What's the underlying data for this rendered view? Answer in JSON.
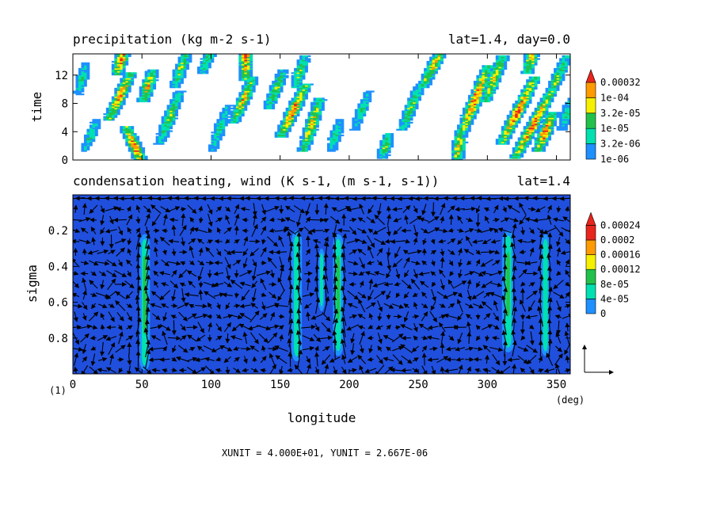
{
  "colors": {
    "background": "#ffffff",
    "axis": "#000000",
    "precip_levels": [
      "#ffffff",
      "#1e90ff",
      "#00e0b0",
      "#22c24a",
      "#f5f000",
      "#ff9a00",
      "#e8261c"
    ],
    "heating_levels": [
      "#1f4fdc",
      "#1e90ff",
      "#00e0b0",
      "#22c24a",
      "#f5f000",
      "#ff9a00",
      "#e8261c"
    ],
    "arrow": "#000000"
  },
  "chart_data": [
    {
      "type": "heatmap",
      "title": "precipitation (kg m-2 s-1)",
      "subtitle": "lat=1.4, day=0.0",
      "xlabel": "",
      "ylabel": "time",
      "xlim": [
        0,
        360
      ],
      "ylim": [
        0,
        15
      ],
      "y_ticks": [
        "0",
        "4",
        "8",
        "12"
      ],
      "legend": {
        "placement": "right",
        "labels": [
          "1e-06",
          "3.2e-06",
          "1e-05",
          "3.2e-05",
          "1e-04",
          "0.00032"
        ]
      },
      "streaks": [
        {
          "lon": 49,
          "t0": 0,
          "slope": -2.2,
          "len": 4,
          "peak": 6
        },
        {
          "lon": 28,
          "t0": 6.5,
          "slope": 2.4,
          "len": 5,
          "peak": 6
        },
        {
          "lon": 33,
          "t0": 12.8,
          "slope": 1.5,
          "len": 3,
          "peak": 6
        },
        {
          "lon": 52,
          "t0": 9,
          "slope": 1.6,
          "len": 3,
          "peak": 5
        },
        {
          "lon": 64,
          "t0": 3,
          "slope": 2,
          "len": 6,
          "peak": 4
        },
        {
          "lon": 75,
          "t0": 11,
          "slope": 1.8,
          "len": 4,
          "peak": 4
        },
        {
          "lon": 95,
          "t0": 13,
          "slope": 2,
          "len": 4,
          "peak": 4
        },
        {
          "lon": 125,
          "t0": 12,
          "slope": 0,
          "len": 5,
          "peak": 6
        },
        {
          "lon": 118,
          "t0": 6,
          "slope": 2.2,
          "len": 5,
          "peak": 5
        },
        {
          "lon": 102,
          "t0": 2,
          "slope": 1.8,
          "len": 5,
          "peak": 3
        },
        {
          "lon": 152,
          "t0": 4,
          "slope": 2.5,
          "len": 6,
          "peak": 6
        },
        {
          "lon": 143,
          "t0": 8,
          "slope": 2,
          "len": 4,
          "peak": 4
        },
        {
          "lon": 168,
          "t0": 2,
          "slope": 1.6,
          "len": 6,
          "peak": 5
        },
        {
          "lon": 162,
          "t0": 11,
          "slope": 1.6,
          "len": 3,
          "peak": 4
        },
        {
          "lon": 188,
          "t0": 2,
          "slope": 1.5,
          "len": 3,
          "peak": 3
        },
        {
          "lon": 205,
          "t0": 5,
          "slope": 2,
          "len": 4,
          "peak": 3
        },
        {
          "lon": 225,
          "t0": 1,
          "slope": 1.4,
          "len": 2,
          "peak": 4
        },
        {
          "lon": 240,
          "t0": 5,
          "slope": 2,
          "len": 5,
          "peak": 4
        },
        {
          "lon": 255,
          "t0": 11,
          "slope": 2.6,
          "len": 5,
          "peak": 5
        },
        {
          "lon": 278,
          "t0": 0.3,
          "slope": 0.8,
          "len": 3,
          "peak": 5
        },
        {
          "lon": 283,
          "t0": 4.5,
          "slope": 2,
          "len": 8,
          "peak": 6
        },
        {
          "lon": 312,
          "t0": 3,
          "slope": 2.6,
          "len": 8,
          "peak": 6
        },
        {
          "lon": 322,
          "t0": 1,
          "slope": 2.8,
          "len": 8,
          "peak": 6
        },
        {
          "lon": 300,
          "t0": 9,
          "slope": 2,
          "len": 5,
          "peak": 5
        },
        {
          "lon": 338,
          "t0": 2,
          "slope": 2,
          "len": 4,
          "peak": 6
        },
        {
          "lon": 345,
          "t0": 9,
          "slope": 2.2,
          "len": 5,
          "peak": 4
        },
        {
          "lon": 330,
          "t0": 13,
          "slope": 1.2,
          "len": 3,
          "peak": 5
        },
        {
          "lon": 355,
          "t0": 5,
          "slope": 1.5,
          "len": 3,
          "peak": 3
        },
        {
          "lon": 10,
          "t0": 2,
          "slope": 2,
          "len": 3,
          "peak": 3
        },
        {
          "lon": 5,
          "t0": 10,
          "slope": 1.2,
          "len": 3,
          "peak": 3
        }
      ]
    },
    {
      "type": "heatmap",
      "title": "condensation heating, wind (K s-1, (m s-1, s-1))",
      "subtitle": "lat=1.4",
      "xlabel": "longitude",
      "ylabel": "sigma",
      "xlim": [
        0,
        360
      ],
      "ylim": [
        1.0,
        0.0
      ],
      "x_ticks": [
        "0",
        "50",
        "100",
        "150",
        "200",
        "250",
        "300",
        "350"
      ],
      "x_unit": "(deg)",
      "y_ticks": [
        "0.2",
        "0.4",
        "0.6",
        "0.8"
      ],
      "panel_index": "(1)",
      "legend": {
        "placement": "right",
        "labels": [
          "0",
          "4e-05",
          "8e-05",
          "0.00012",
          "0.00016",
          "0.0002",
          "0.00024"
        ]
      },
      "heating_columns": [
        {
          "lon": 52,
          "top": 0.22,
          "bottom": 0.98,
          "width": 1.2,
          "peak": 3
        },
        {
          "lon": 162,
          "top": 0.2,
          "bottom": 0.93,
          "width": 1.2,
          "peak": 2
        },
        {
          "lon": 180,
          "top": 0.3,
          "bottom": 0.65,
          "width": 0.7,
          "peak": 1
        },
        {
          "lon": 192,
          "top": 0.22,
          "bottom": 0.9,
          "width": 1.2,
          "peak": 3
        },
        {
          "lon": 315,
          "top": 0.2,
          "bottom": 0.88,
          "width": 1.4,
          "peak": 3
        },
        {
          "lon": 342,
          "top": 0.22,
          "bottom": 0.9,
          "width": 1.0,
          "peak": 2
        }
      ],
      "wind_vectors": "dense quiver field",
      "footer": "XUNIT = 4.000E+01, YUNIT = 2.667E-06"
    }
  ]
}
